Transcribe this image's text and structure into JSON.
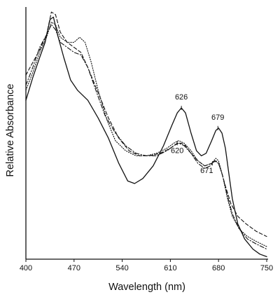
{
  "chart_data": {
    "type": "line",
    "title": "",
    "xlabel": "Wavelength (nm)",
    "ylabel": "Relative Absorbance",
    "xlim": [
      400,
      750
    ],
    "ylim": [
      0,
      1
    ],
    "x_ticks": [
      400,
      470,
      540,
      610,
      680,
      750
    ],
    "y_ticks": [],
    "grid": false,
    "legend": "none",
    "series": [
      {
        "style": "solid",
        "points": [
          [
            400,
            0.63
          ],
          [
            410,
            0.72
          ],
          [
            420,
            0.8
          ],
          [
            428,
            0.86
          ],
          [
            435,
            0.95
          ],
          [
            440,
            0.96
          ],
          [
            447,
            0.88
          ],
          [
            455,
            0.8
          ],
          [
            465,
            0.71
          ],
          [
            475,
            0.67
          ],
          [
            490,
            0.63
          ],
          [
            505,
            0.56
          ],
          [
            520,
            0.48
          ],
          [
            535,
            0.38
          ],
          [
            548,
            0.31
          ],
          [
            558,
            0.3
          ],
          [
            570,
            0.32
          ],
          [
            585,
            0.37
          ],
          [
            600,
            0.45
          ],
          [
            612,
            0.53
          ],
          [
            620,
            0.58
          ],
          [
            626,
            0.6
          ],
          [
            632,
            0.58
          ],
          [
            640,
            0.5
          ],
          [
            648,
            0.43
          ],
          [
            655,
            0.41
          ],
          [
            662,
            0.42
          ],
          [
            670,
            0.47
          ],
          [
            676,
            0.51
          ],
          [
            680,
            0.52
          ],
          [
            685,
            0.5
          ],
          [
            690,
            0.44
          ],
          [
            695,
            0.34
          ],
          [
            700,
            0.24
          ],
          [
            708,
            0.14
          ],
          [
            718,
            0.08
          ],
          [
            730,
            0.04
          ],
          [
            740,
            0.02
          ],
          [
            750,
            0.01
          ]
        ]
      },
      {
        "style": "dashed",
        "points": [
          [
            400,
            0.73
          ],
          [
            410,
            0.78
          ],
          [
            420,
            0.83
          ],
          [
            430,
            0.89
          ],
          [
            437,
            0.98
          ],
          [
            443,
            0.97
          ],
          [
            450,
            0.9
          ],
          [
            460,
            0.86
          ],
          [
            470,
            0.84
          ],
          [
            480,
            0.82
          ],
          [
            490,
            0.76
          ],
          [
            505,
            0.66
          ],
          [
            520,
            0.56
          ],
          [
            535,
            0.48
          ],
          [
            550,
            0.43
          ],
          [
            565,
            0.41
          ],
          [
            580,
            0.41
          ],
          [
            595,
            0.42
          ],
          [
            610,
            0.44
          ],
          [
            620,
            0.46
          ],
          [
            626,
            0.46
          ],
          [
            632,
            0.45
          ],
          [
            640,
            0.42
          ],
          [
            650,
            0.39
          ],
          [
            660,
            0.37
          ],
          [
            670,
            0.38
          ],
          [
            676,
            0.39
          ],
          [
            680,
            0.38
          ],
          [
            685,
            0.34
          ],
          [
            690,
            0.29
          ],
          [
            698,
            0.22
          ],
          [
            708,
            0.17
          ],
          [
            720,
            0.14
          ],
          [
            735,
            0.11
          ],
          [
            750,
            0.09
          ]
        ]
      },
      {
        "style": "dotted",
        "points": [
          [
            400,
            0.67
          ],
          [
            410,
            0.74
          ],
          [
            420,
            0.82
          ],
          [
            430,
            0.88
          ],
          [
            437,
            0.94
          ],
          [
            443,
            0.93
          ],
          [
            450,
            0.88
          ],
          [
            460,
            0.86
          ],
          [
            470,
            0.86
          ],
          [
            478,
            0.88
          ],
          [
            486,
            0.86
          ],
          [
            495,
            0.78
          ],
          [
            505,
            0.67
          ],
          [
            518,
            0.55
          ],
          [
            530,
            0.47
          ],
          [
            545,
            0.43
          ],
          [
            560,
            0.41
          ],
          [
            575,
            0.41
          ],
          [
            590,
            0.42
          ],
          [
            605,
            0.44
          ],
          [
            615,
            0.46
          ],
          [
            622,
            0.47
          ],
          [
            630,
            0.46
          ],
          [
            640,
            0.43
          ],
          [
            650,
            0.39
          ],
          [
            660,
            0.37
          ],
          [
            670,
            0.38
          ],
          [
            676,
            0.4
          ],
          [
            680,
            0.39
          ],
          [
            686,
            0.33
          ],
          [
            693,
            0.24
          ],
          [
            700,
            0.17
          ],
          [
            710,
            0.12
          ],
          [
            722,
            0.09
          ],
          [
            735,
            0.07
          ],
          [
            750,
            0.05
          ]
        ]
      },
      {
        "style": "dash-dot",
        "points": [
          [
            400,
            0.69
          ],
          [
            410,
            0.76
          ],
          [
            420,
            0.84
          ],
          [
            430,
            0.89
          ],
          [
            437,
            0.93
          ],
          [
            443,
            0.91
          ],
          [
            450,
            0.86
          ],
          [
            460,
            0.84
          ],
          [
            470,
            0.82
          ],
          [
            480,
            0.81
          ],
          [
            490,
            0.76
          ],
          [
            503,
            0.66
          ],
          [
            515,
            0.57
          ],
          [
            530,
            0.5
          ],
          [
            545,
            0.45
          ],
          [
            560,
            0.42
          ],
          [
            575,
            0.41
          ],
          [
            590,
            0.41
          ],
          [
            605,
            0.43
          ],
          [
            615,
            0.45
          ],
          [
            622,
            0.46
          ],
          [
            630,
            0.45
          ],
          [
            640,
            0.42
          ],
          [
            650,
            0.38
          ],
          [
            660,
            0.36
          ],
          [
            668,
            0.37
          ],
          [
            674,
            0.39
          ],
          [
            680,
            0.38
          ],
          [
            686,
            0.33
          ],
          [
            693,
            0.25
          ],
          [
            700,
            0.18
          ],
          [
            710,
            0.12
          ],
          [
            722,
            0.08
          ],
          [
            735,
            0.06
          ],
          [
            750,
            0.04
          ]
        ]
      }
    ],
    "annotations": [
      {
        "text": "626",
        "x": 626,
        "y": 0.6
      },
      {
        "text": "679",
        "x": 679,
        "y": 0.52
      },
      {
        "text": "620",
        "x": 620,
        "y": 0.46
      },
      {
        "text": "671",
        "x": 671,
        "y": 0.38
      }
    ]
  }
}
